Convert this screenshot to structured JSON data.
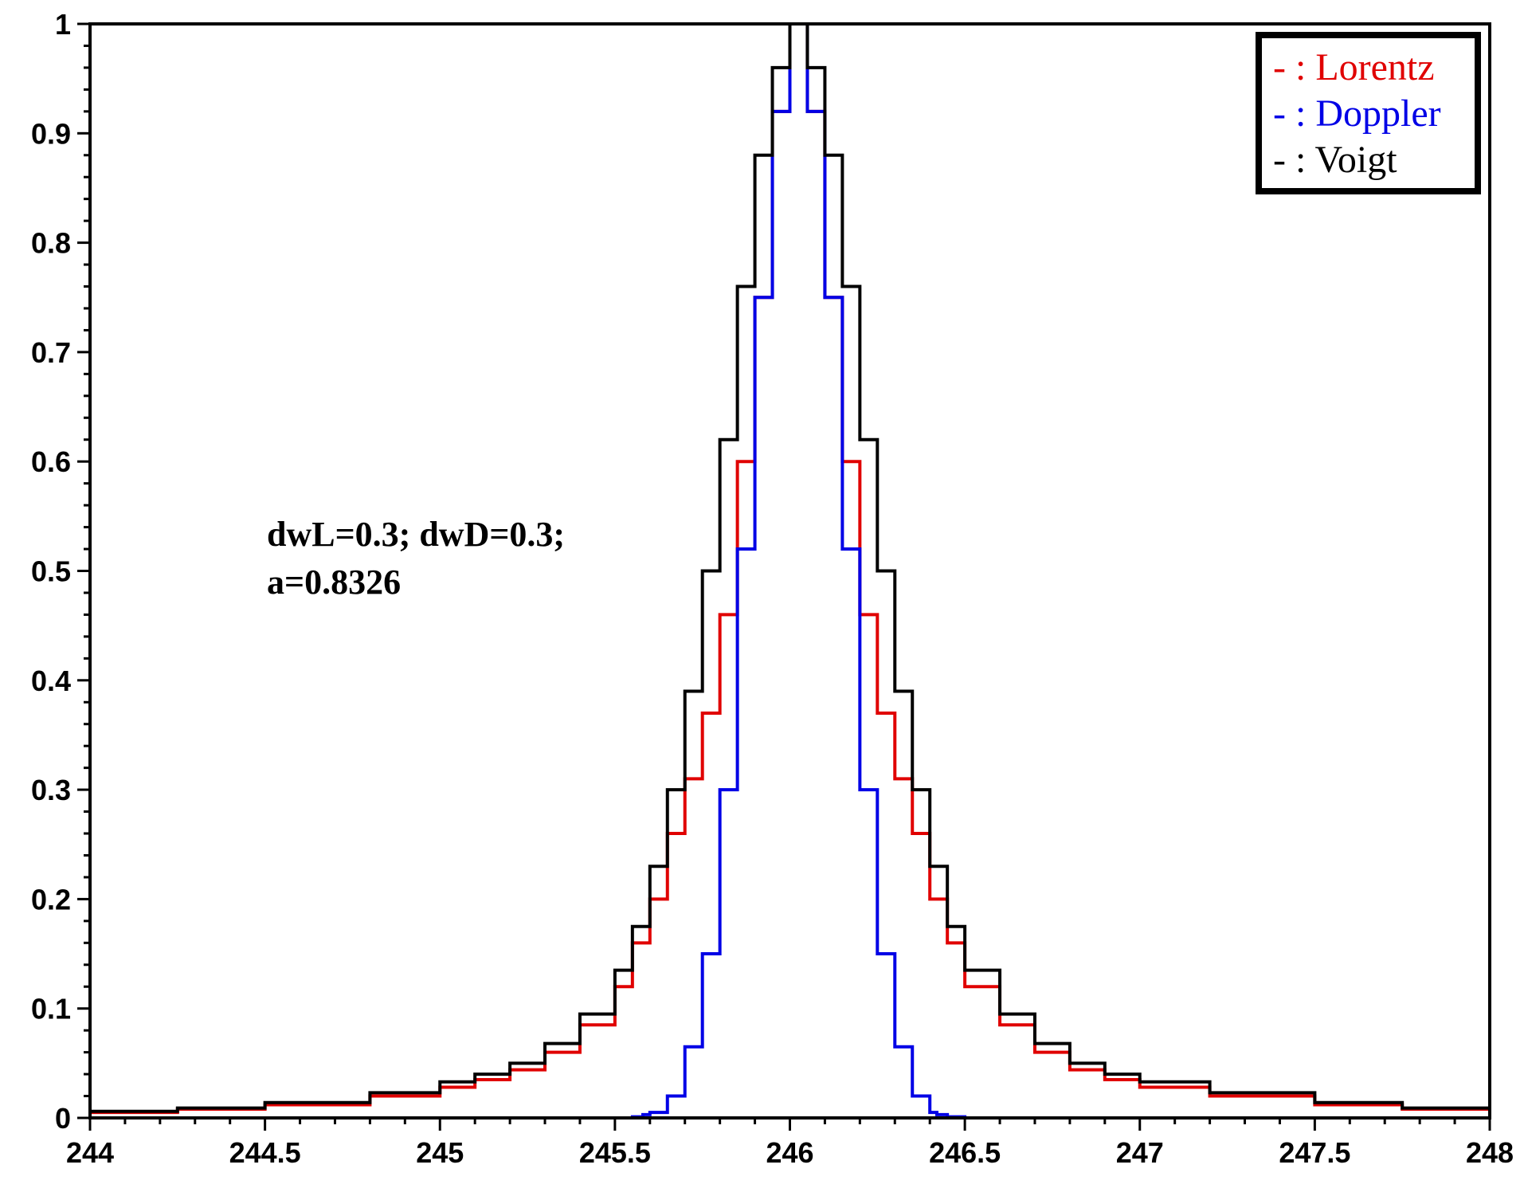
{
  "chart_data": {
    "type": "line",
    "title": "",
    "xlabel": "",
    "ylabel": "",
    "xlim": [
      244,
      248
    ],
    "ylim": [
      0,
      1
    ],
    "x_ticks": [
      "244",
      "244.5",
      "245",
      "245.5",
      "246",
      "246.5",
      "247",
      "247.5",
      "248"
    ],
    "y_ticks": [
      "0",
      "0.1",
      "0.2",
      "0.3",
      "0.4",
      "0.5",
      "0.6",
      "0.7",
      "0.8",
      "0.9",
      "1"
    ],
    "grid": false,
    "legend_position": "top-right",
    "annotation": {
      "line1": "dwL=0.3; dwD=0.3;",
      "line2": "a=0.8326"
    },
    "center": 246,
    "series": [
      {
        "name": "Lorentz",
        "legend_label": "- : Lorentz",
        "color": "#e00000",
        "dx": [
          0,
          0.05,
          0.1,
          0.15,
          0.2,
          0.25,
          0.3,
          0.35,
          0.4,
          0.45,
          0.5,
          0.6,
          0.7,
          0.8,
          0.9,
          1.0,
          1.2,
          1.5,
          1.75,
          2.0
        ],
        "y": [
          1,
          0.92,
          0.75,
          0.6,
          0.46,
          0.37,
          0.31,
          0.26,
          0.2,
          0.16,
          0.12,
          0.085,
          0.06,
          0.044,
          0.035,
          0.028,
          0.02,
          0.012,
          0.008,
          0.005
        ]
      },
      {
        "name": "Doppler",
        "legend_label": "- : Doppler",
        "color": "#0000e6",
        "dx": [
          0,
          0.05,
          0.1,
          0.15,
          0.2,
          0.25,
          0.3,
          0.35,
          0.4,
          0.42,
          0.45,
          0.5
        ],
        "y": [
          1,
          0.92,
          0.75,
          0.52,
          0.3,
          0.15,
          0.065,
          0.02,
          0.005,
          0.003,
          0.001,
          0
        ]
      },
      {
        "name": "Voigt",
        "legend_label": "- : Voigt",
        "color": "#000000",
        "dx": [
          0,
          0.05,
          0.1,
          0.15,
          0.2,
          0.25,
          0.3,
          0.35,
          0.4,
          0.45,
          0.5,
          0.6,
          0.7,
          0.8,
          0.9,
          1.0,
          1.2,
          1.5,
          1.75,
          2.0
        ],
        "y": [
          1,
          0.96,
          0.88,
          0.76,
          0.62,
          0.5,
          0.39,
          0.3,
          0.23,
          0.175,
          0.135,
          0.095,
          0.068,
          0.05,
          0.04,
          0.033,
          0.023,
          0.014,
          0.009,
          0.006
        ]
      }
    ]
  }
}
